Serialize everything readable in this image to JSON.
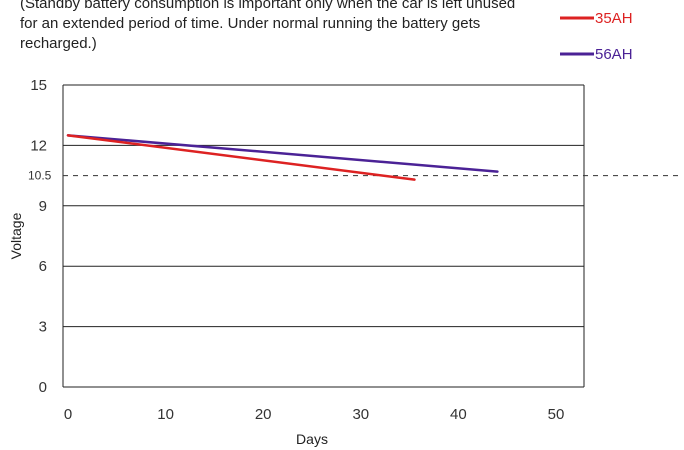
{
  "note_text": "(Standby battery consumption is important only when the car is left unused for an extended period of time. Under normal running the battery gets recharged.)",
  "chart_data": {
    "type": "line",
    "title": "",
    "xlabel": "Days",
    "ylabel": "Voltage",
    "xlim": [
      0,
      55
    ],
    "ylim": [
      0,
      15
    ],
    "x_ticks": [
      0,
      10,
      20,
      30,
      40,
      50
    ],
    "y_ticks": [
      0,
      3,
      6,
      9,
      12,
      15
    ],
    "y_gridlines": [
      3,
      6,
      9,
      12,
      15
    ],
    "grid": "horizontal",
    "legend_position": "top-right",
    "reference_line": {
      "y": 10.5,
      "label": "10.5",
      "style": "dashed"
    },
    "series": [
      {
        "name": "35AH",
        "color": "#dd2222",
        "points": [
          [
            0,
            12.5
          ],
          [
            35.5,
            10.3
          ]
        ]
      },
      {
        "name": "56AH",
        "color": "#4b2296",
        "points": [
          [
            0,
            12.5
          ],
          [
            44,
            10.7
          ]
        ]
      }
    ]
  }
}
